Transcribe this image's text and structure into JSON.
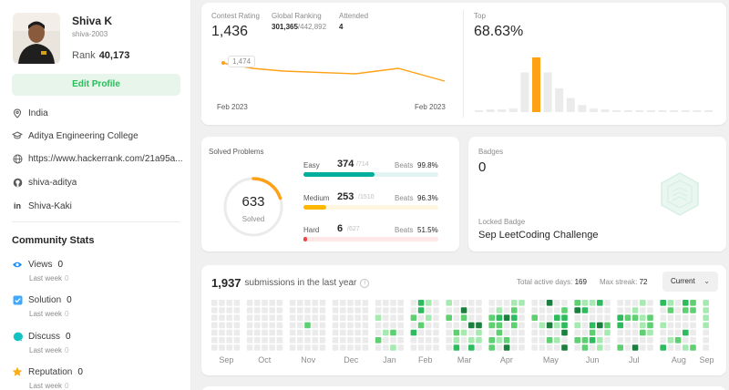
{
  "profile": {
    "name": "Shiva K",
    "username": "shiva-2003",
    "rank_label": "Rank",
    "rank_value": "40,173",
    "edit_button": "Edit Profile",
    "info": [
      {
        "icon": "location-pin-icon",
        "text": "India"
      },
      {
        "icon": "graduation-cap-icon",
        "text": "Aditya Engineering College"
      },
      {
        "icon": "globe-icon",
        "text": "https://www.hackerrank.com/21a95a..."
      },
      {
        "icon": "github-icon",
        "text": "shiva-aditya"
      },
      {
        "icon": "linkedin-icon",
        "text": "Shiva-Kaki"
      }
    ]
  },
  "community_stats": {
    "title": "Community Stats",
    "items": [
      {
        "label": "Views",
        "value": "0",
        "sub": "Last week",
        "sub_value": "0",
        "icon": "eye-icon",
        "color": "#1890ff"
      },
      {
        "label": "Solution",
        "value": "0",
        "sub": "Last week",
        "sub_value": "0",
        "icon": "check-square-icon",
        "color": "#40a9ff"
      },
      {
        "label": "Discuss",
        "value": "0",
        "sub": "Last week",
        "sub_value": "0",
        "icon": "chat-bubble-icon",
        "color": "#13c2c2"
      },
      {
        "label": "Reputation",
        "value": "0",
        "sub": "Last week",
        "sub_value": "0",
        "icon": "star-icon",
        "color": "#faad14"
      }
    ]
  },
  "contest": {
    "rating_label": "Contest Rating",
    "rating": "1,436",
    "global_label": "Global Ranking",
    "global_rank": "301,365",
    "global_total": "/442,892",
    "attended_label": "Attended",
    "attended": "4",
    "tooltip": "1,474",
    "x_ticks": [
      "Feb 2023",
      "Feb 2023"
    ],
    "line_color": "#ffa116",
    "top_label": "Top",
    "top_value": "68.63%",
    "histogram": [
      2,
      3,
      3,
      4,
      45,
      62,
      45,
      27,
      16,
      8,
      4,
      3,
      2,
      2,
      2,
      2,
      2,
      2,
      2,
      2,
      2
    ],
    "histogram_highlight_index": 5,
    "highlight_color": "#ffa116"
  },
  "solved": {
    "title": "Solved Problems",
    "total": "633",
    "total_label": "Solved",
    "total_fraction": 0.2,
    "ring_color": "#ffa116",
    "difficulties": [
      {
        "name": "Easy",
        "count": "374",
        "total": "/714",
        "beats_label": "Beats",
        "beats": "99.8%",
        "fraction": 0.524,
        "color": "#00af9b",
        "track": "#e1f4f1"
      },
      {
        "name": "Medium",
        "count": "253",
        "total": "/1510",
        "beats_label": "Beats",
        "beats": "96.3%",
        "fraction": 0.168,
        "color": "#ffb800",
        "track": "#fff6e0"
      },
      {
        "name": "Hard",
        "count": "6",
        "total": "/627",
        "beats_label": "Beats",
        "beats": "51.5%",
        "fraction": 0.01,
        "color": "#ef4743",
        "track": "#fde7e7"
      }
    ]
  },
  "badges": {
    "label": "Badges",
    "count": "0",
    "locked_label": "Locked Badge",
    "locked_name": "Sep LeetCoding Challenge"
  },
  "submissions": {
    "count": "1,937",
    "text": "submissions in the last year",
    "active_days_label": "Total active days:",
    "active_days": "169",
    "max_streak_label": "Max streak:",
    "max_streak": "72",
    "select_value": "Current",
    "months": [
      "Sep",
      "Oct",
      "Nov",
      "Dec",
      "Jan",
      "Feb",
      "Mar",
      "Apr",
      "May",
      "Jun",
      "Jul",
      "Aug",
      "Sep"
    ],
    "colors": [
      "#ebebeb",
      "#a6e9b1",
      "#5fd072",
      "#2cbb5d",
      "#1b7f3d"
    ]
  }
}
